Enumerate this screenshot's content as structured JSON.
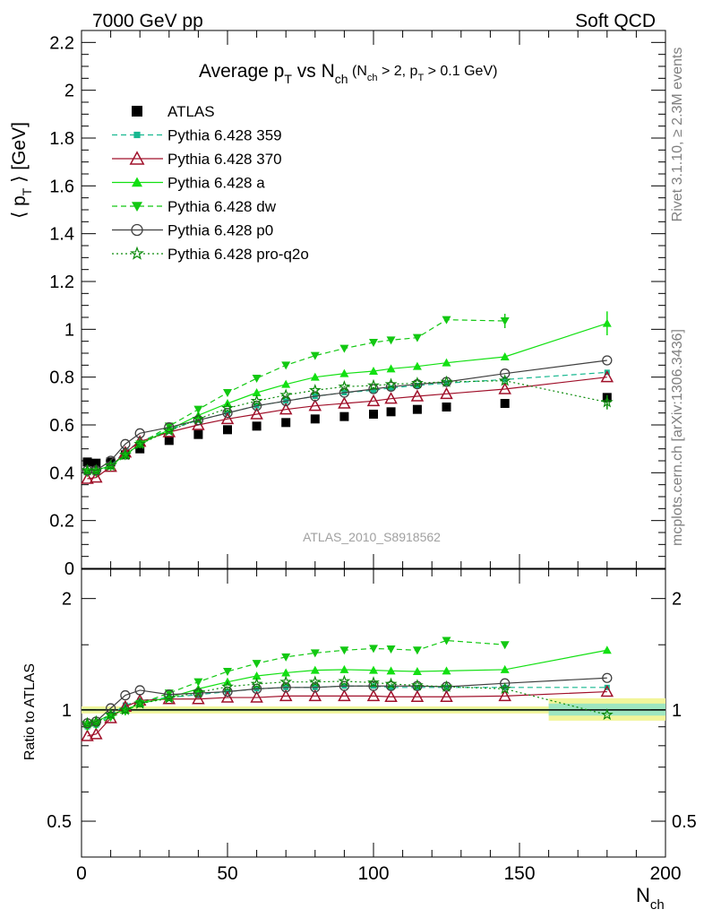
{
  "header": {
    "energy_label": "7000 GeV pp",
    "process_label": "Soft QCD",
    "title_main": "Average p",
    "title_sub_t": "T",
    "title_vs": " vs N",
    "title_sub_ch": "ch",
    "title_cuts_1": " (N",
    "title_cuts_sub1": "ch",
    "title_cuts_2": " > 2, p",
    "title_cuts_sub2": "T",
    "title_cuts_3": " > 0.1 GeV)"
  },
  "side_labels": {
    "rivet": "Rivet 3.1.10, ≥ 2.3M events",
    "mcplots": "mcplots.cern.ch [arXiv:1306.3436]"
  },
  "watermark": "ATLAS_2010_S8918562",
  "chart_data": [
    {
      "type": "scatter",
      "panel": "main",
      "ylabel_main": "⟨ p",
      "ylabel_sub": "T",
      "ylabel_end": " ⟩  [GeV]",
      "xlabel_main": "N",
      "xlabel_sub": "ch",
      "xlim": [
        0,
        200
      ],
      "ylim": [
        0,
        2.25
      ],
      "xticks": [
        "0",
        "50",
        "100",
        "150",
        "200"
      ],
      "yticks": [
        "0",
        "0.2",
        "0.4",
        "0.6",
        "0.8",
        "1",
        "1.2",
        "1.4",
        "1.6",
        "1.8",
        "2",
        "2.2"
      ],
      "legend_position": "top-left",
      "series": [
        {
          "name": "ATLAS",
          "color": "#000000",
          "marker": "square",
          "line": "none",
          "x": [
            2,
            5,
            10,
            15,
            20,
            30,
            40,
            50,
            60,
            70,
            80,
            90,
            100,
            106,
            115,
            125,
            145,
            180
          ],
          "y": [
            0.445,
            0.44,
            0.445,
            0.475,
            0.5,
            0.535,
            0.56,
            0.58,
            0.595,
            0.61,
            0.625,
            0.635,
            0.645,
            0.655,
            0.665,
            0.675,
            0.69,
            0.715
          ]
        },
        {
          "name": "Pythia 6.428 359",
          "color": "#17b890",
          "marker": "small-square",
          "line": "dashed",
          "x": [
            2,
            5,
            10,
            15,
            20,
            30,
            40,
            50,
            60,
            70,
            80,
            90,
            100,
            106,
            115,
            125,
            145,
            180
          ],
          "y": [
            0.4,
            0.4,
            0.43,
            0.49,
            0.53,
            0.58,
            0.62,
            0.65,
            0.68,
            0.7,
            0.72,
            0.735,
            0.745,
            0.755,
            0.765,
            0.775,
            0.79,
            0.82
          ]
        },
        {
          "name": "Pythia 6.428 370",
          "color": "#a0102a",
          "marker": "open-triangle-up",
          "line": "solid",
          "x": [
            2,
            5,
            10,
            15,
            20,
            30,
            40,
            50,
            60,
            70,
            80,
            90,
            100,
            106,
            115,
            125,
            145,
            180
          ],
          "y": [
            0.375,
            0.38,
            0.425,
            0.485,
            0.53,
            0.57,
            0.6,
            0.625,
            0.645,
            0.665,
            0.68,
            0.69,
            0.7,
            0.71,
            0.72,
            0.73,
            0.75,
            0.8
          ]
        },
        {
          "name": "Pythia 6.428 a",
          "color": "#12e012",
          "marker": "triangle-up",
          "line": "solid",
          "x": [
            2,
            5,
            10,
            15,
            20,
            30,
            40,
            50,
            60,
            70,
            80,
            90,
            100,
            106,
            115,
            125,
            145,
            180
          ],
          "y": [
            0.41,
            0.41,
            0.43,
            0.475,
            0.52,
            0.58,
            0.64,
            0.69,
            0.735,
            0.77,
            0.8,
            0.815,
            0.825,
            0.835,
            0.845,
            0.86,
            0.885,
            1.025
          ]
        },
        {
          "name": "Pythia 6.428 dw",
          "color": "#12c812",
          "marker": "triangle-down",
          "line": "dashed",
          "x": [
            2,
            5,
            10,
            15,
            20,
            30,
            40,
            50,
            60,
            70,
            80,
            90,
            100,
            106,
            115,
            125,
            145
          ],
          "y": [
            0.4,
            0.4,
            0.425,
            0.47,
            0.52,
            0.595,
            0.665,
            0.735,
            0.795,
            0.85,
            0.89,
            0.92,
            0.945,
            0.955,
            0.965,
            1.04,
            1.035
          ]
        },
        {
          "name": "Pythia 6.428 p0",
          "color": "#404040",
          "marker": "open-circle",
          "line": "solid",
          "x": [
            2,
            5,
            10,
            15,
            20,
            30,
            40,
            50,
            60,
            70,
            80,
            90,
            100,
            106,
            115,
            125,
            145,
            180
          ],
          "y": [
            0.41,
            0.41,
            0.45,
            0.52,
            0.565,
            0.59,
            0.62,
            0.65,
            0.68,
            0.7,
            0.72,
            0.735,
            0.75,
            0.76,
            0.77,
            0.78,
            0.815,
            0.87
          ]
        },
        {
          "name": "Pythia 6.428 pro-q2o",
          "color": "#0a8a0a",
          "marker": "open-star",
          "line": "dotted",
          "x": [
            2,
            5,
            10,
            15,
            20,
            30,
            40,
            50,
            60,
            70,
            80,
            90,
            100,
            106,
            115,
            125,
            145,
            180
          ],
          "y": [
            0.41,
            0.41,
            0.43,
            0.475,
            0.52,
            0.575,
            0.625,
            0.67,
            0.7,
            0.725,
            0.745,
            0.76,
            0.765,
            0.77,
            0.775,
            0.78,
            0.785,
            0.695
          ]
        }
      ]
    },
    {
      "type": "scatter",
      "panel": "ratio",
      "ylabel": "Ratio to ATLAS",
      "ylog": true,
      "ylim": [
        0.4,
        2.4
      ],
      "yticks": [
        "0.5",
        "1",
        "2"
      ],
      "yticks_right": [
        "0.5",
        "1",
        "2"
      ],
      "reference": 1.0,
      "series_ratio": [
        {
          "name": "Pythia 6.428 359",
          "y": [
            0.9,
            0.91,
            0.97,
            1.03,
            1.06,
            1.08,
            1.1,
            1.12,
            1.14,
            1.15,
            1.15,
            1.16,
            1.16,
            1.15,
            1.15,
            1.15,
            1.15,
            1.15
          ]
        },
        {
          "name": "Pythia 6.428 370",
          "y": [
            0.85,
            0.86,
            0.95,
            1.02,
            1.06,
            1.07,
            1.07,
            1.08,
            1.08,
            1.09,
            1.09,
            1.09,
            1.09,
            1.085,
            1.085,
            1.085,
            1.09,
            1.12
          ]
        },
        {
          "name": "Pythia 6.428 a",
          "y": [
            0.92,
            0.93,
            0.97,
            1.0,
            1.04,
            1.08,
            1.14,
            1.19,
            1.235,
            1.26,
            1.28,
            1.285,
            1.28,
            1.275,
            1.27,
            1.275,
            1.285,
            1.45
          ]
        },
        {
          "name": "Pythia 6.428 dw",
          "y": [
            0.9,
            0.91,
            0.955,
            0.99,
            1.04,
            1.11,
            1.19,
            1.27,
            1.335,
            1.39,
            1.425,
            1.45,
            1.465,
            1.46,
            1.45,
            1.54,
            1.5
          ]
        },
        {
          "name": "Pythia 6.428 p0",
          "y": [
            0.92,
            0.93,
            1.01,
            1.095,
            1.13,
            1.1,
            1.11,
            1.12,
            1.14,
            1.15,
            1.15,
            1.16,
            1.16,
            1.16,
            1.16,
            1.155,
            1.18,
            1.22
          ]
        },
        {
          "name": "Pythia 6.428 pro-q2o",
          "y": [
            0.92,
            0.93,
            0.97,
            1.0,
            1.04,
            1.075,
            1.115,
            1.155,
            1.175,
            1.19,
            1.19,
            1.195,
            1.185,
            1.175,
            1.165,
            1.155,
            1.14,
            0.97
          ]
        }
      ]
    }
  ]
}
